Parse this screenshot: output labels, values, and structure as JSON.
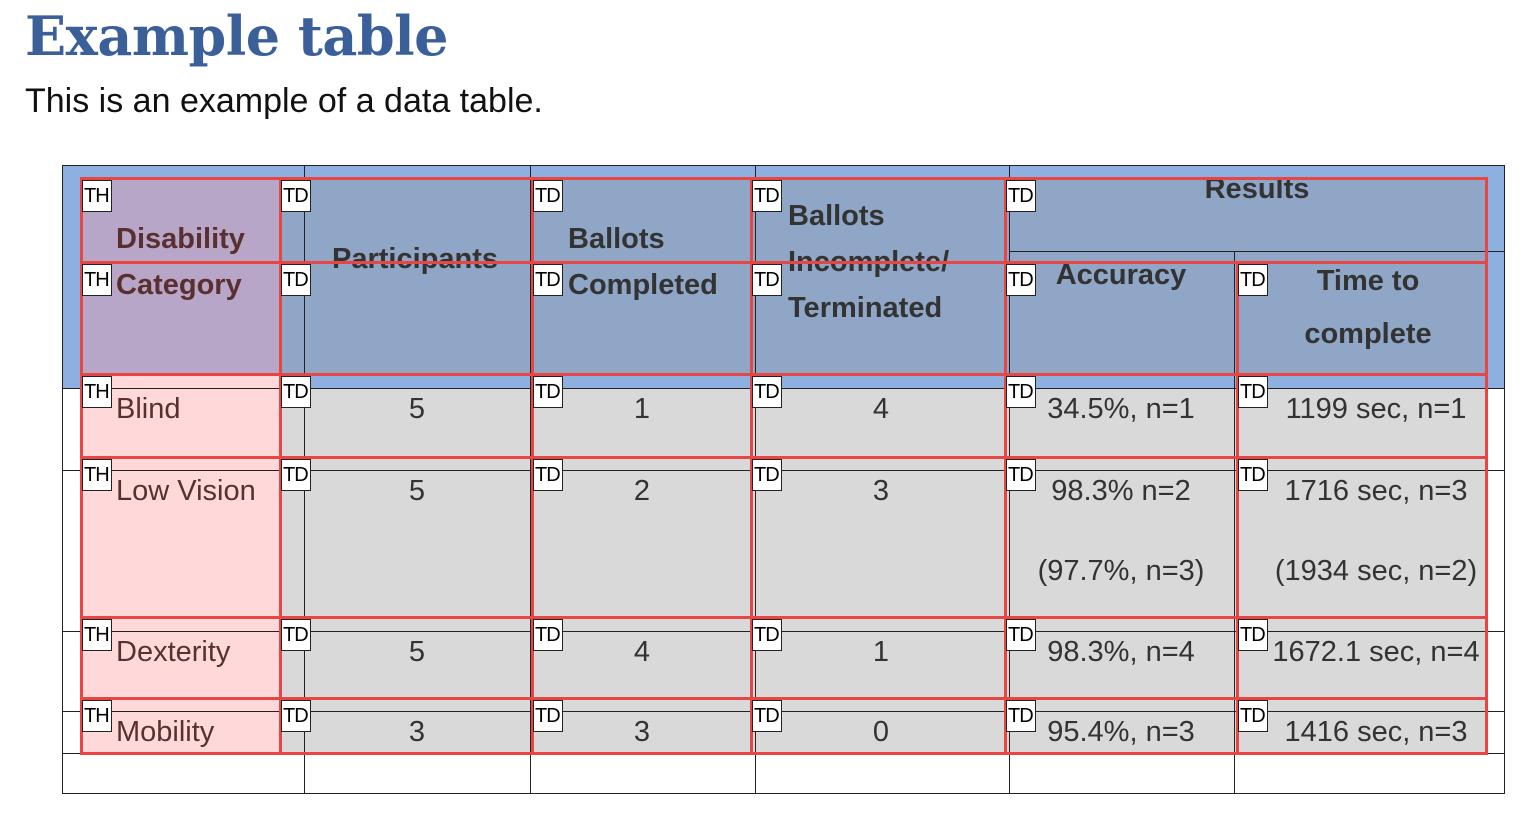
{
  "document": {
    "title": "Example table",
    "subtitle": "This is an example of a data table."
  },
  "table": {
    "headers": {
      "disability_category": "Disability Category",
      "participants": "Participants",
      "ballots_completed": "Ballots Completed",
      "ballots_incomplete": "Ballots Incomplete/ Terminated",
      "results": "Results",
      "accuracy": "Accuracy",
      "time_to_complete": "Time to complete"
    },
    "rows": [
      {
        "category": "Blind",
        "participants": "5",
        "completed": "1",
        "incomplete": "4",
        "accuracy": "34.5%, n=1",
        "accuracy2": "",
        "time": "1199 sec, n=1",
        "time2": ""
      },
      {
        "category": "Low Vision",
        "participants": "5",
        "completed": "2",
        "incomplete": "3",
        "accuracy": "98.3% n=2",
        "accuracy2": "(97.7%, n=3)",
        "time": "1716 sec, n=3",
        "time2": "(1934 sec, n=2)"
      },
      {
        "category": "Dexterity",
        "participants": "5",
        "completed": "4",
        "incomplete": "1",
        "accuracy": "98.3%, n=4",
        "accuracy2": "",
        "time": "1672.1 sec, n=4",
        "time2": ""
      },
      {
        "category": "Mobility",
        "participants": "3",
        "completed": "3",
        "incomplete": "0",
        "accuracy": "95.4%, n=3",
        "accuracy2": "",
        "time": "1416 sec, n=3",
        "time2": ""
      }
    ]
  },
  "overlay": {
    "tags": [
      [
        "TH",
        "TD",
        "TD",
        "TD",
        "TD"
      ],
      [
        "TH",
        "TD",
        "TD",
        "TD",
        "TD",
        "TD"
      ],
      [
        "TH",
        "TD",
        "TD",
        "TD",
        "TD",
        "TD"
      ],
      [
        "TH",
        "TD",
        "TD",
        "TD",
        "TD",
        "TD"
      ],
      [
        "TH",
        "TD",
        "TD",
        "TD",
        "TD",
        "TD"
      ],
      [
        "TH",
        "TD",
        "TD",
        "TD",
        "TD",
        "TD"
      ]
    ],
    "colors": {
      "outline": "#e84545",
      "header_band": "#8eb0e0",
      "header_cells": "#8fa6c6",
      "th_header": "#b7a6c8",
      "th_body": "#ffd9d9",
      "td_body": "#d9d9d9"
    }
  }
}
